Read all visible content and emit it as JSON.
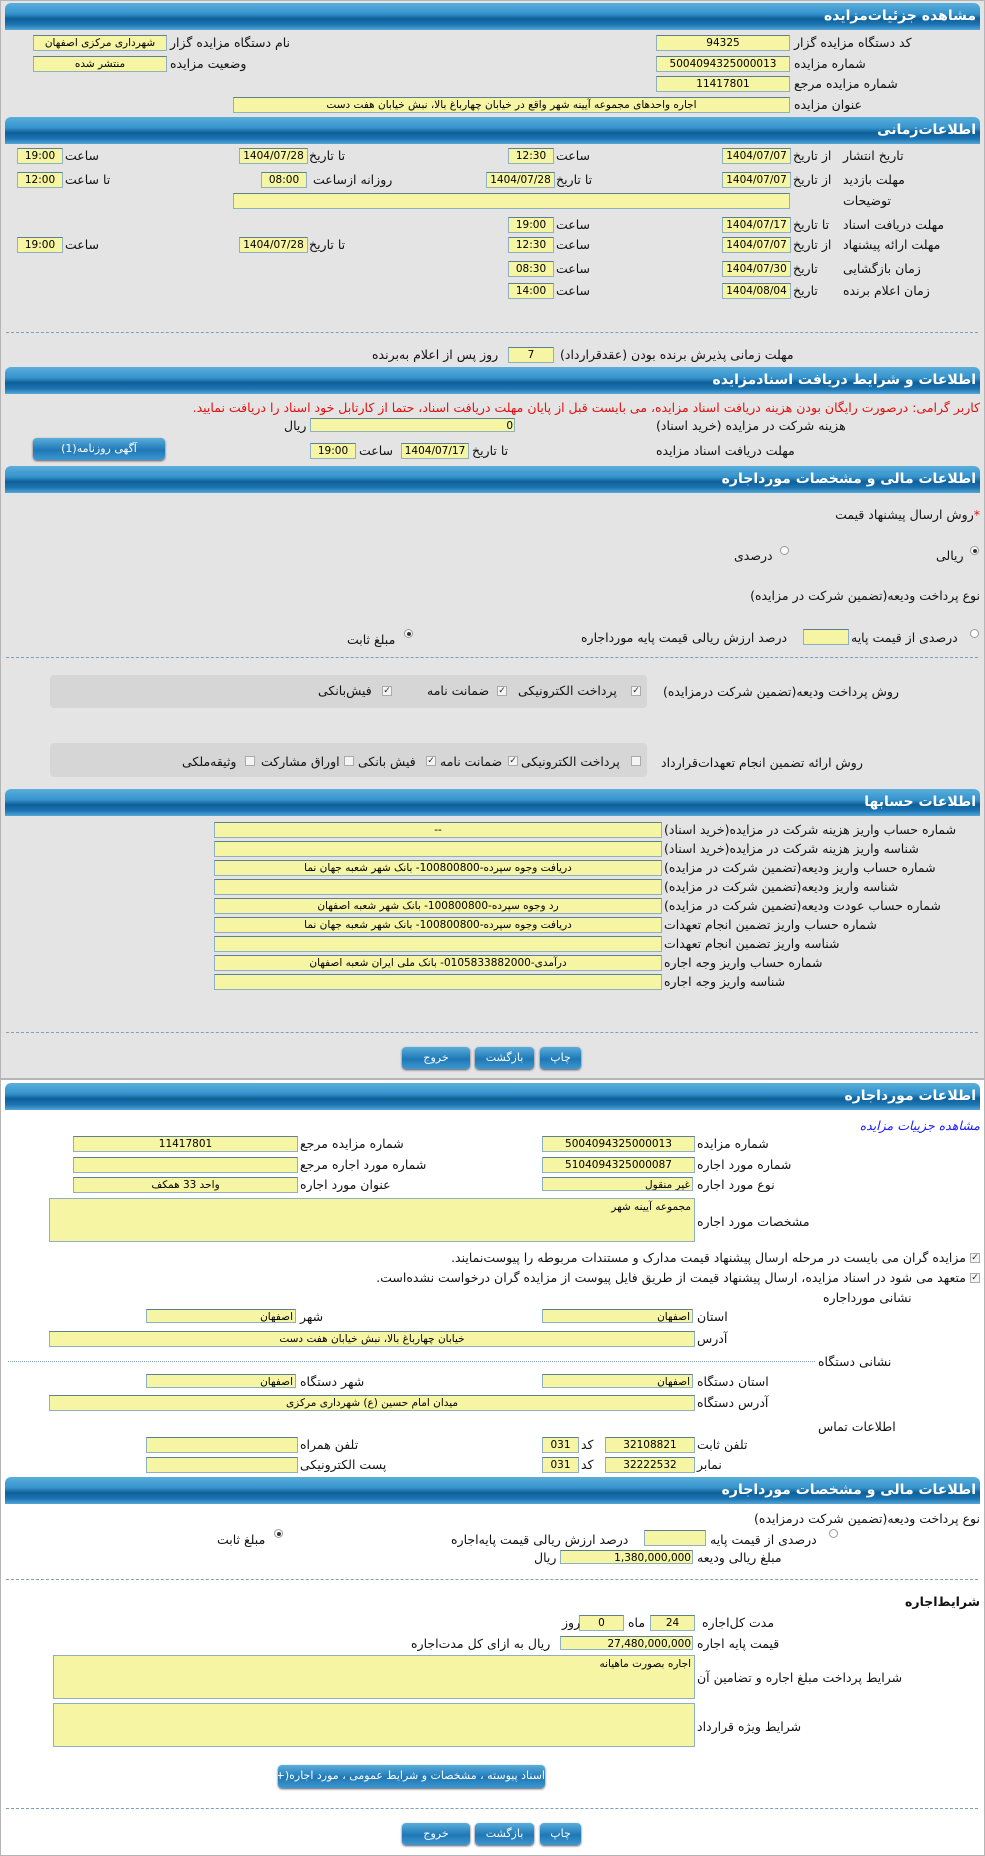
{
  "details": {
    "title": "مشاهده جزئیات‌مزایده",
    "org_code_label": "کد دستگاه مزایده گزار",
    "org_code": "94325",
    "org_name_label": "نام دستگاه مزایده گزار",
    "org_name": "شهرداری مرکزی اصفهان",
    "auction_no_label": "شماره مزایده",
    "auction_no": "5004094325000013",
    "status_label": "وضعیت مزایده",
    "status": "منتشر شده",
    "ref_no_label": "شماره مزایده مرجع",
    "ref_no": "11417801",
    "subject_label": "عنوان مزایده",
    "subject": "اجاره واحدهای مجموعه آیینه شهر واقع در خیابان چهارباغ بالا، نبش خیابان هفت دست"
  },
  "timing": {
    "title": "اطلاعات‌زمانی",
    "from_date": "از تاریخ",
    "to_date": "تا تاریخ",
    "date": "تاریخ",
    "time": "ساعت",
    "to_time": "تا ساعت",
    "daily_from": "روزانه ازساعت",
    "publish_label": "تاریخ انتشار",
    "publish_from": "1404/07/07",
    "publish_from_time": "12:30",
    "publish_to": "1404/07/28",
    "publish_to_time": "19:00",
    "visit_label": "مهلت بازدید",
    "visit_from": "1404/07/07",
    "visit_to": "1404/07/28",
    "visit_daily_from": "08:00",
    "visit_daily_to": "12:00",
    "desc_label": "توضیحات",
    "desc": "",
    "docs_label": "مهلت دریافت اسناد",
    "docs_to": "1404/07/17",
    "docs_time": "19:00",
    "offer_label": "مهلت ارائه پیشنهاد",
    "offer_from": "1404/07/07",
    "offer_from_time": "12:30",
    "offer_to": "1404/07/28",
    "offer_to_time": "19:00",
    "opening_label": "زمان بازگشایی",
    "opening_date": "1404/07/30",
    "opening_time": "08:30",
    "winner_label": "زمان اعلام برنده",
    "winner_date": "1404/08/04",
    "winner_time": "14:00",
    "accept_label": "مهلت زمانی پذیرش برنده بودن (عقدقرارداد)",
    "accept_days": "7",
    "accept_suffix": "روز پس از اعلام به‌برنده"
  },
  "docs": {
    "title": "اطلاعات و شرایط دریافت اسنادمزایده",
    "notice": "کاربر گرامی: درصورت رایگان بودن هزینه دریافت اسناد مزایده، می بایست قبل از پایان مهلت دریافت اسناد، حتما از کارتابل خود اسناد را دریافت نمایید.",
    "fee_label": "هزینه شرکت در مزایده (خرید اسناد)",
    "fee": "0",
    "currency": "ریال",
    "deadline_label": "مهلت دریافت اسناد مزایده",
    "to_date": "تا تاریخ",
    "deadline_date": "1404/07/17",
    "time": "ساعت",
    "deadline_time": "19:00",
    "ad_button": "آگهی روزنامه(1)"
  },
  "finance": {
    "title": "اطلاعات مالی و مشخصات مورداجاره",
    "required_mark": "*",
    "price_method_label": "روش ارسال پیشنهاد قیمت",
    "rial": "ریالی",
    "percent": "درصدی",
    "price_method_selected": "ریالی",
    "deposit_type_label": "نوع پرداخت ودیعه(تضمین شرکت در مزایده)",
    "percent_of_base": "درصدی از قیمت پایه",
    "percent_value": "",
    "percent_suffix": "درصد ارزش ریالی قیمت پایه مورداجاره",
    "fixed_amount": "مبلغ ثابت",
    "deposit_type_selected": "مبلغ ثابت",
    "deposit_method_label": "روش پرداخت ودیعه(تضمین شرکت درمزایده)",
    "deposit_methods": [
      {
        "label": "پرداخت الکترونیکی",
        "checked": true
      },
      {
        "label": "ضمانت نامه",
        "checked": true
      },
      {
        "label": "فیش‌بانکی",
        "checked": true
      }
    ],
    "guarantee_label": "روش ارائه تضمین انجام تعهدات‌قرارداد",
    "guarantee_methods": [
      {
        "label": "پرداخت الکترونیکی",
        "checked": false
      },
      {
        "label": "ضمانت نامه",
        "checked": true
      },
      {
        "label": "فیش بانکی",
        "checked": true
      },
      {
        "label": "اوراق مشارکت",
        "checked": false
      },
      {
        "label": "وثیقه‌ملکی",
        "checked": false
      }
    ]
  },
  "accounts": {
    "title": "اطلاعات حسابها",
    "rows": [
      {
        "label": "شماره حساب واریز هزینه شرکت در مزایده(خرید اسناد)",
        "value": "--"
      },
      {
        "label": "شناسه واریز هزینه شرکت در مزایده(خرید اسناد)",
        "value": ""
      },
      {
        "label": "شماره حساب واریز ودیعه(تضمین شرکت در مزایده)",
        "value": "دریافت وجوه سپرده-100800800- بانک شهر شعبه جهان نما"
      },
      {
        "label": "شناسه واریز ودیعه(تضمین شرکت در مزایده)",
        "value": ""
      },
      {
        "label": "شماره حساب عودت ودیعه(تضمین شرکت در مزایده)",
        "value": "رد وجوه سپرده-100800800- بانک شهر شعبه اصفهان"
      },
      {
        "label": "شماره حساب واریز تضمین انجام تعهدات",
        "value": "دریافت وجوه سپرده-100800800- بانک شهر شعبه جهان نما"
      },
      {
        "label": "شناسه واریز تضمین انجام تعهدات",
        "value": ""
      },
      {
        "label": "شماره حساب واریز وجه اجاره",
        "value": "درآمدی-0105833882000- بانک ملی ایران شعبه اصفهان"
      },
      {
        "label": "شناسه واریز وجه اجاره",
        "value": ""
      }
    ]
  },
  "actions": {
    "print": "چاپ",
    "back": "بازگشت",
    "exit": "خروج"
  },
  "lease": {
    "title": "اطلاعات مورداجاره",
    "details_link": "مشاهده جزییات مزایده",
    "auction_no_label": "شماره مزایده",
    "auction_no": "5004094325000013",
    "ref_no_label": "شماره مزایده مرجع",
    "ref_no": "11417801",
    "item_no_label": "شماره مورد اجاره",
    "item_no": "5104094325000087",
    "item_ref_label": "شماره مورد اجاره مرجع",
    "item_ref": "",
    "item_type_label": "نوع مورد اجاره",
    "item_type": "غیر منقول",
    "item_title_label": "عنوان مورد اجاره",
    "item_title": "واحد 33 همکف",
    "specs_label": "مشخصات مورد اجاره",
    "specs": "مجموعه آیینه شهر",
    "check1": "مزایده گران می بایست در مرحله ارسال پیشنهاد قیمت مدارک و مستندات مربوطه را پیوست‌نمایند.",
    "check2": "متعهد می شود در اسناد مزایده، ارسال پیشنهاد قیمت از طریق فایل پیوست از مزایده گران درخواست نشده‌است.",
    "address_title": "نشانی مورداجاره",
    "province_label": "استان",
    "province": "اصفهان",
    "city_label": "شهر",
    "city": "اصفهان",
    "address_label": "آدرس",
    "address": "خیابان چهارباغ بالا، نبش خیابان هفت دست",
    "org_address_title": "نشانی دستگاه",
    "org_province_label": "استان دستگاه",
    "org_province": "اصفهان",
    "org_city_label": "شهر دستگاه",
    "org_city": "اصفهان",
    "org_address_label": "آدرس دستگاه",
    "org_address": "میدان امام حسین (ع) شهرداری مرکزی",
    "contact_title": "اطلاعات تماس",
    "phone_label": "تلفن ثابت",
    "phone": "32108821",
    "code_label": "کد",
    "phone_code": "031",
    "mobile_label": "تلفن همراه",
    "mobile": "",
    "fax_label": "نمابر",
    "fax": "32222532",
    "fax_code": "031",
    "email_label": "پست الکترونیکی",
    "email": ""
  },
  "lease_finance": {
    "title": "اطلاعات مالی و مشخصات مورداجاره",
    "deposit_type_label": "نوع پرداخت ودیعه(تضمین شرکت درمزایده)",
    "percent_of_base": "درصدی از قیمت پایه",
    "percent_value": "",
    "percent_suffix": "درصد ارزش ریالی قیمت پایه‌اجاره",
    "fixed_amount": "مبلغ ثابت",
    "deposit_type_selected": "مبلغ ثابت",
    "deposit_amount_label": "مبلغ ریالی ودیعه",
    "deposit_amount": "1,380,000,000",
    "currency": "ریال",
    "terms_title": "شرایط‌اجاره",
    "duration_label": "مدت کل‌اجاره",
    "months": "24",
    "months_label": "ماه",
    "days": "0",
    "days_label": "روز",
    "base_price_label": "قیمت پایه اجاره",
    "base_price": "27,480,000,000",
    "base_price_suffix": "ریال به ازای کل مدت‌اجاره",
    "payment_terms_label": "شرایط پرداخت مبلغ اجاره و تضامین آن",
    "payment_terms": "اجاره بصورت ماهیانه",
    "special_terms_label": "شرایط ویژه قرارداد",
    "special_terms": "",
    "attachments_button": "اسناد پیوسته ، مشخصات و شرایط عمومی ، مورد اجاره(+"
  }
}
